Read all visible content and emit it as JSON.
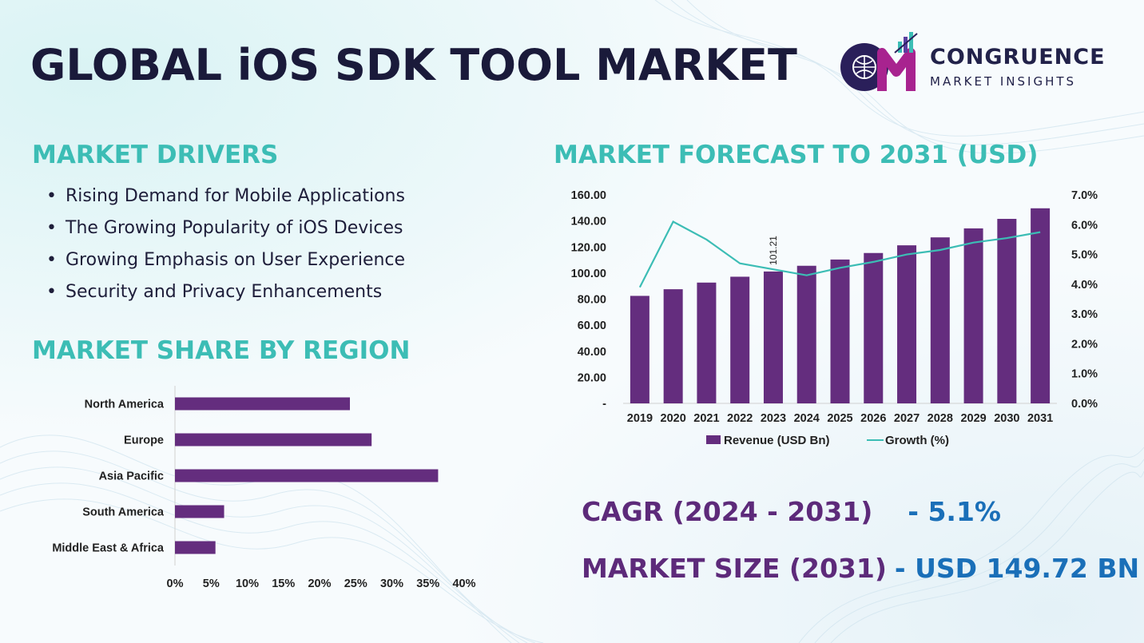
{
  "header": {
    "title": "GLOBAL iOS SDK TOOL MARKET",
    "logo_name": "CONGRUENCE",
    "logo_sub": "MARKET INSIGHTS"
  },
  "drivers": {
    "heading": "MARKET DRIVERS",
    "items": [
      "Rising Demand for Mobile Applications",
      "The Growing Popularity of iOS Devices",
      "Growing Emphasis on User Experience",
      "Security and Privacy Enhancements"
    ]
  },
  "region": {
    "heading": "MARKET SHARE BY REGION"
  },
  "forecast": {
    "heading": "MARKET FORECAST TO 2031 (USD)"
  },
  "kpis": {
    "cagr_label": "CAGR (2024 - 2031)",
    "cagr_value": "- 5.1%",
    "size_label": "MARKET SIZE (2031)",
    "size_value": "- USD 149.72 BN"
  },
  "colors": {
    "accent": "#3cbdb5",
    "bar": "#642d7e",
    "line": "#3cbdb5",
    "value": "#1a6fb8",
    "title": "#1a1a3a"
  },
  "chart_data": [
    {
      "type": "bar",
      "orientation": "horizontal",
      "categories": [
        "North America",
        "Europe",
        "Asia Pacific",
        "South America",
        "Middle East & Africa"
      ],
      "values": [
        24.2,
        27.2,
        36.4,
        6.8,
        5.6
      ],
      "xlim": [
        0,
        40
      ],
      "xticks": [
        "0%",
        "5%",
        "10%",
        "15%",
        "20%",
        "25%",
        "30%",
        "35%",
        "40%"
      ],
      "grid": false
    },
    {
      "type": "bar",
      "categories": [
        "2019",
        "2020",
        "2021",
        "2022",
        "2023",
        "2024",
        "2025",
        "2026",
        "2027",
        "2028",
        "2029",
        "2030",
        "2031"
      ],
      "series": [
        {
          "name": "Revenue (USD Bn)",
          "type": "bar",
          "axis": "left",
          "values": [
            82.5,
            87.6,
            92.7,
            97.2,
            101.21,
            105.6,
            110.4,
            115.4,
            121.3,
            127.4,
            134.3,
            141.6,
            149.72
          ]
        },
        {
          "name": "Growth (%)",
          "type": "line",
          "axis": "right",
          "values": [
            3.9,
            6.1,
            5.5,
            4.7,
            4.5,
            4.3,
            4.55,
            4.75,
            5.0,
            5.15,
            5.4,
            5.55,
            5.75
          ]
        }
      ],
      "ylim": [
        0,
        160
      ],
      "yticks": [
        "-",
        "20.00",
        "40.00",
        "60.00",
        "80.00",
        "100.00",
        "120.00",
        "140.00",
        "160.00"
      ],
      "y2lim": [
        0,
        7
      ],
      "y2ticks": [
        "0.0%",
        "1.0%",
        "2.0%",
        "3.0%",
        "4.0%",
        "5.0%",
        "6.0%",
        "7.0%"
      ],
      "annotations": [
        {
          "category": "2023",
          "text": "101.21"
        }
      ],
      "legend": "bottom",
      "grid": false
    }
  ]
}
